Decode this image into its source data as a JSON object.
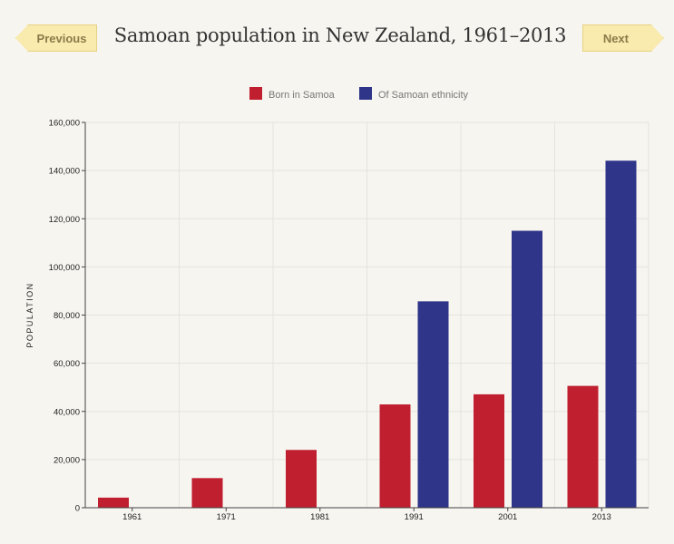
{
  "nav": {
    "previous_label": "Previous",
    "next_label": "Next"
  },
  "colors": {
    "born_in_samoa": "#c01f2f",
    "samoan_ethnicity": "#2f3589",
    "grid": "#e6e3dc",
    "axis": "#444444"
  },
  "chart_data": {
    "type": "bar",
    "title": "Samoan population in New Zealand, 1961–2013",
    "xlabel": "",
    "ylabel": "POPULATION",
    "ylim": [
      0,
      160000
    ],
    "yticks": [
      0,
      20000,
      40000,
      60000,
      80000,
      100000,
      120000,
      140000,
      160000
    ],
    "ytick_labels": [
      "0",
      "20,000",
      "40,000",
      "60,000",
      "80,000",
      "100,000",
      "120,000",
      "140,000",
      "160,000"
    ],
    "categories": [
      "1961",
      "1971",
      "1981",
      "1991",
      "2001",
      "2013"
    ],
    "series": [
      {
        "name": "Born in Samoa",
        "values": [
          4200,
          12300,
          24000,
          42900,
          47100,
          50600
        ]
      },
      {
        "name": "Of Samoan ethnicity",
        "values": [
          null,
          null,
          null,
          85700,
          115000,
          144100
        ]
      }
    ],
    "legend_position": "top-center",
    "grid": true
  }
}
